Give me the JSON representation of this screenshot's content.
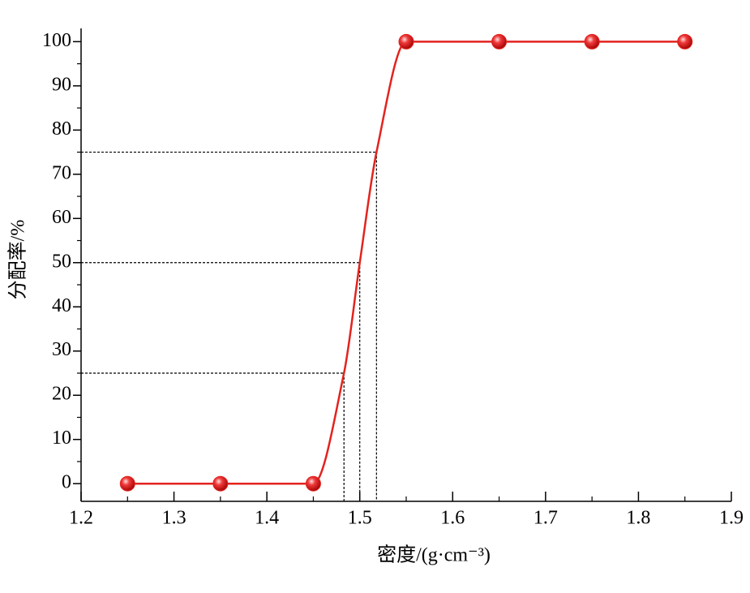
{
  "chart_data": {
    "type": "line",
    "xlabel": "密度/(g·cm⁻³)",
    "ylabel": "分配率/%",
    "x": [
      1.25,
      1.35,
      1.45,
      1.55,
      1.65,
      1.75,
      1.85
    ],
    "series": [
      {
        "color": "#e3231e",
        "values": [
          0,
          0,
          0,
          100,
          100,
          100,
          100
        ]
      }
    ],
    "curve": {
      "x": [
        1.25,
        1.35,
        1.45,
        1.483,
        1.5,
        1.518,
        1.55,
        1.65,
        1.75,
        1.85
      ],
      "values": [
        0,
        0,
        0,
        25,
        50,
        75,
        100,
        100,
        100,
        100
      ]
    },
    "guides": [
      {
        "x": 1.483,
        "y": 25
      },
      {
        "x": 1.5,
        "y": 50
      },
      {
        "x": 1.518,
        "y": 75
      }
    ],
    "xlim": [
      1.2,
      1.9
    ],
    "xticks": [
      1.2,
      1.3,
      1.4,
      1.5,
      1.6,
      1.7,
      1.8,
      1.9
    ],
    "ylim": [
      -4,
      103
    ],
    "yticks": [
      0,
      10,
      20,
      30,
      40,
      50,
      60,
      70,
      80,
      90,
      100
    ]
  }
}
